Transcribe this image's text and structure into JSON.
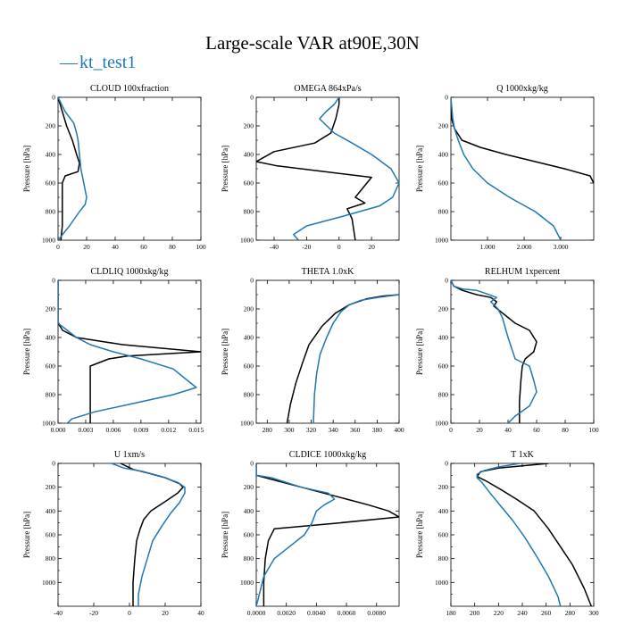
{
  "figure_title": "Large-scale VAR at90E,30N",
  "legend": {
    "dash": "—",
    "label": "kt_test1"
  },
  "colors": {
    "series_black": "#000000",
    "series_blue": "#1f77b4",
    "axis": "#000000"
  },
  "chart_data": [
    {
      "type": "line",
      "title": "CLOUD  100xfraction",
      "ylabel": "Pressure [hPa]",
      "xlim": [
        0,
        100
      ],
      "ylim": [
        1000,
        0
      ],
      "y_inverted": true,
      "xticks": [
        0,
        20,
        40,
        60,
        80,
        100
      ],
      "xtick_labels": [
        "0",
        "20",
        "40",
        "60",
        "80",
        "100"
      ],
      "yticks": [
        0,
        200,
        400,
        600,
        800,
        1000
      ],
      "ytick_labels": [
        "0",
        "200",
        "400",
        "600",
        "800",
        "1000"
      ],
      "series": [
        {
          "name": "black",
          "color": "#000000",
          "x": [
            0,
            3,
            6,
            10,
            13,
            15,
            14,
            5,
            3,
            3,
            3,
            3,
            2
          ],
          "y": [
            0,
            100,
            200,
            300,
            400,
            460,
            520,
            550,
            600,
            700,
            800,
            900,
            1000
          ]
        },
        {
          "name": "kt_test1",
          "color": "#1f77b4",
          "x": [
            0,
            5,
            11,
            13,
            14,
            15,
            16,
            18,
            20,
            19,
            15,
            8,
            0
          ],
          "y": [
            0,
            100,
            180,
            250,
            300,
            400,
            500,
            600,
            700,
            750,
            800,
            900,
            1000
          ]
        }
      ]
    },
    {
      "type": "line",
      "title": "OMEGA  864xPa/s",
      "ylabel": "Pressure [hPa]",
      "xlim": [
        -51,
        37
      ],
      "ylim": [
        1000,
        0
      ],
      "y_inverted": true,
      "xticks": [
        -40,
        -20,
        0,
        20
      ],
      "xtick_labels": [
        "-40",
        "-20",
        "0",
        "20"
      ],
      "yticks": [
        0,
        200,
        400,
        600,
        800,
        1000
      ],
      "ytick_labels": [
        "0",
        "200",
        "400",
        "600",
        "800",
        "1000"
      ],
      "series": [
        {
          "name": "black",
          "color": "#000000",
          "x": [
            0,
            0,
            -1,
            -2,
            -5,
            -15,
            -40,
            -51,
            -38,
            20,
            10,
            16,
            5,
            8,
            10
          ],
          "y": [
            0,
            50,
            100,
            150,
            250,
            320,
            380,
            450,
            480,
            560,
            700,
            740,
            780,
            850,
            1000
          ]
        },
        {
          "name": "kt_test1",
          "color": "#1f77b4",
          "x": [
            0,
            -3,
            -8,
            -12,
            -3,
            8,
            20,
            32,
            37,
            33,
            25,
            0,
            -20,
            -28,
            -25
          ],
          "y": [
            0,
            50,
            100,
            150,
            250,
            320,
            400,
            500,
            600,
            700,
            760,
            840,
            900,
            960,
            1000
          ]
        }
      ]
    },
    {
      "type": "line",
      "title": "Q  1000xkg/kg",
      "ylabel": "Pressure [hPa]",
      "xlim": [
        0,
        3.9
      ],
      "ylim": [
        1000,
        0
      ],
      "y_inverted": true,
      "xticks": [
        1,
        2,
        3
      ],
      "xtick_labels": [
        "1.000",
        "2.000",
        "3.000"
      ],
      "yticks": [
        0,
        200,
        400,
        600,
        800,
        1000
      ],
      "ytick_labels": [
        "0",
        "200",
        "400",
        "600",
        "800",
        "1000"
      ],
      "series": [
        {
          "name": "black",
          "color": "#000000",
          "x": [
            0,
            0.02,
            0.1,
            0.3,
            0.8,
            1.5,
            2.3,
            3.1,
            3.8,
            3.9
          ],
          "y": [
            0,
            150,
            220,
            300,
            350,
            400,
            450,
            500,
            550,
            600
          ]
        },
        {
          "name": "kt_test1",
          "color": "#1f77b4",
          "x": [
            0,
            0.05,
            0.1,
            0.2,
            0.35,
            0.6,
            1.0,
            1.6,
            2.3,
            2.8,
            3.0
          ],
          "y": [
            0,
            150,
            220,
            300,
            400,
            500,
            600,
            700,
            800,
            900,
            1000
          ]
        }
      ]
    },
    {
      "type": "line",
      "title": "CLDLIQ  1000xkg/kg",
      "ylabel": "Pressure [hPa]",
      "xlim": [
        0,
        0.0155
      ],
      "ylim": [
        1000,
        0
      ],
      "y_inverted": true,
      "xticks": [
        0,
        0.003,
        0.006,
        0.009,
        0.012,
        0.015
      ],
      "xtick_labels": [
        "0.000",
        "0.003",
        "0.006",
        "0.009",
        "0.012",
        "0.015"
      ],
      "yticks": [
        0,
        200,
        400,
        600,
        800,
        1000
      ],
      "ytick_labels": [
        "0",
        "200",
        "400",
        "600",
        "800",
        "1000"
      ],
      "series": [
        {
          "name": "black",
          "color": "#000000",
          "x": [
            0,
            0,
            0.0005,
            0.002,
            0.007,
            0.0155,
            0.0075,
            0.0055,
            0.0035,
            0.0035,
            0.0035,
            0.0035
          ],
          "y": [
            0,
            300,
            350,
            400,
            450,
            500,
            530,
            550,
            600,
            700,
            900,
            1000
          ]
        },
        {
          "name": "kt_test1",
          "color": "#1f77b4",
          "x": [
            0,
            0,
            0.001,
            0.002,
            0.0035,
            0.006,
            0.009,
            0.0125,
            0.015,
            0.0125,
            0.009,
            0.004,
            0.0015,
            0.001
          ],
          "y": [
            0,
            300,
            350,
            400,
            450,
            500,
            550,
            620,
            750,
            800,
            850,
            920,
            970,
            1000
          ]
        }
      ]
    },
    {
      "type": "line",
      "title": "THETA  1.0xK",
      "ylabel": "Pressure [hPa]",
      "xlim": [
        270,
        400
      ],
      "ylim": [
        1000,
        0
      ],
      "y_inverted": true,
      "xticks": [
        280,
        300,
        320,
        340,
        360,
        380,
        400
      ],
      "xtick_labels": [
        "280",
        "300",
        "320",
        "340",
        "360",
        "380",
        "400"
      ],
      "yticks": [
        0,
        200,
        400,
        600,
        800,
        1000
      ],
      "ytick_labels": [
        "0",
        "200",
        "400",
        "600",
        "800",
        "1000"
      ],
      "series": [
        {
          "name": "black",
          "color": "#000000",
          "x": [
            400,
            385,
            370,
            355,
            342,
            330,
            318,
            312,
            306,
            301,
            298
          ],
          "y": [
            100,
            110,
            130,
            170,
            230,
            320,
            450,
            580,
            720,
            870,
            1000
          ]
        },
        {
          "name": "kt_test1",
          "color": "#1f77b4",
          "x": [
            400,
            380,
            365,
            355,
            347,
            340,
            334,
            328,
            325,
            323,
            322
          ],
          "y": [
            100,
            120,
            140,
            170,
            220,
            300,
            400,
            520,
            650,
            800,
            1000
          ]
        }
      ]
    },
    {
      "type": "line",
      "title": "RELHUM  1xpercent",
      "ylabel": "Pressure [hPa]",
      "xlim": [
        0,
        100
      ],
      "ylim": [
        1000,
        0
      ],
      "y_inverted": true,
      "xticks": [
        0,
        20,
        40,
        60,
        80,
        100
      ],
      "xtick_labels": [
        "0",
        "20",
        "40",
        "60",
        "80",
        "100"
      ],
      "yticks": [
        0,
        200,
        400,
        600,
        800,
        1000
      ],
      "ytick_labels": [
        "0",
        "200",
        "400",
        "600",
        "800",
        "1000"
      ],
      "series": [
        {
          "name": "black",
          "color": "#000000",
          "x": [
            0,
            2,
            8,
            18,
            28,
            32,
            30,
            35,
            45,
            55,
            60,
            58,
            52,
            50,
            49,
            48,
            48
          ],
          "y": [
            0,
            40,
            70,
            100,
            120,
            150,
            180,
            220,
            300,
            350,
            430,
            500,
            550,
            600,
            700,
            850,
            1000
          ]
        },
        {
          "name": "kt_test1",
          "color": "#1f77b4",
          "x": [
            0,
            2,
            8,
            18,
            24,
            32,
            28,
            33,
            36,
            40,
            45,
            55,
            58,
            60,
            55,
            45,
            40
          ],
          "y": [
            0,
            40,
            60,
            70,
            90,
            120,
            150,
            200,
            260,
            400,
            550,
            600,
            700,
            780,
            880,
            950,
            1000
          ]
        }
      ]
    },
    {
      "type": "line",
      "title": "U  1xm/s",
      "ylabel": "Pressure [hPa]",
      "xlim": [
        -40,
        40
      ],
      "ylim": [
        1200,
        0
      ],
      "y_inverted": true,
      "xticks": [
        -40,
        -20,
        0,
        20,
        40
      ],
      "xtick_labels": [
        "-40",
        "-20",
        "0",
        "20",
        "40"
      ],
      "yticks": [
        0,
        200,
        400,
        600,
        800,
        1000
      ],
      "ytick_labels": [
        "0",
        "200",
        "400",
        "600",
        "800",
        "1000"
      ],
      "series": [
        {
          "name": "black",
          "color": "#000000",
          "x": [
            -5,
            2,
            10,
            20,
            28,
            30,
            27,
            20,
            12,
            8,
            6,
            4,
            3,
            2,
            2
          ],
          "y": [
            0,
            50,
            80,
            120,
            170,
            200,
            250,
            320,
            400,
            470,
            550,
            650,
            800,
            1000,
            1200
          ]
        },
        {
          "name": "kt_test1",
          "color": "#1f77b4",
          "x": [
            -10,
            -3,
            8,
            18,
            27,
            31,
            31,
            28,
            23,
            18,
            13,
            10,
            7,
            5,
            5
          ],
          "y": [
            0,
            40,
            70,
            110,
            160,
            200,
            250,
            330,
            420,
            530,
            650,
            800,
            950,
            1100,
            1200
          ]
        }
      ]
    },
    {
      "type": "line",
      "title": "CLDICE  1000xkg/kg",
      "ylabel": "Pressure [hPa]",
      "xlim": [
        0,
        0.0095
      ],
      "ylim": [
        1200,
        0
      ],
      "y_inverted": true,
      "xticks": [
        0,
        0.002,
        0.004,
        0.006,
        0.008
      ],
      "xtick_labels": [
        "0.0000",
        "0.0020",
        "0.0040",
        "0.0060",
        "0.0080"
      ],
      "yticks": [
        0,
        200,
        400,
        600,
        800,
        1000
      ],
      "ytick_labels": [
        "0",
        "200",
        "400",
        "600",
        "800",
        "1000"
      ],
      "series": [
        {
          "name": "black",
          "color": "#000000",
          "x": [
            0,
            0,
            0.0015,
            0.003,
            0.0045,
            0.006,
            0.0075,
            0.0088,
            0.0095,
            0.0055,
            0.0012,
            0.0008,
            0.0006,
            0.0005,
            0.0005
          ],
          "y": [
            0,
            100,
            150,
            200,
            250,
            300,
            350,
            400,
            450,
            500,
            550,
            650,
            800,
            1000,
            1200
          ]
        },
        {
          "name": "kt_test1",
          "color": "#1f77b4",
          "x": [
            0,
            0,
            0.001,
            0.003,
            0.0048,
            0.0052,
            0.0045,
            0.004,
            0.0037,
            0.0032,
            0.0022,
            0.0012,
            0.0005,
            0.0002,
            0
          ],
          "y": [
            0,
            100,
            120,
            200,
            250,
            300,
            350,
            400,
            500,
            600,
            700,
            800,
            950,
            1100,
            1200
          ]
        }
      ]
    },
    {
      "type": "line",
      "title": "T  1xK",
      "ylabel": "Pressure [hPa]",
      "xlim": [
        180,
        300
      ],
      "ylim": [
        1200,
        0
      ],
      "y_inverted": true,
      "xticks": [
        180,
        200,
        220,
        240,
        260,
        280,
        300
      ],
      "xtick_labels": [
        "180",
        "200",
        "220",
        "240",
        "260",
        "280",
        "300"
      ],
      "yticks": [
        0,
        200,
        400,
        600,
        800,
        1000
      ],
      "ytick_labels": [
        "0",
        "200",
        "400",
        "600",
        "800",
        "1000"
      ],
      "series": [
        {
          "name": "black",
          "color": "#000000",
          "x": [
            262,
            240,
            220,
            205,
            202,
            210,
            222,
            235,
            250,
            262,
            272,
            282,
            292,
            298
          ],
          "y": [
            0,
            20,
            40,
            70,
            110,
            150,
            220,
            300,
            400,
            550,
            700,
            850,
            1050,
            1200
          ]
        },
        {
          "name": "kt_test1",
          "color": "#1f77b4",
          "x": [
            238,
            220,
            208,
            202,
            202,
            206,
            213,
            222,
            232,
            242,
            252,
            262,
            270,
            272
          ],
          "y": [
            0,
            30,
            60,
            90,
            120,
            160,
            250,
            360,
            480,
            620,
            780,
            950,
            1120,
            1200
          ]
        }
      ]
    }
  ]
}
